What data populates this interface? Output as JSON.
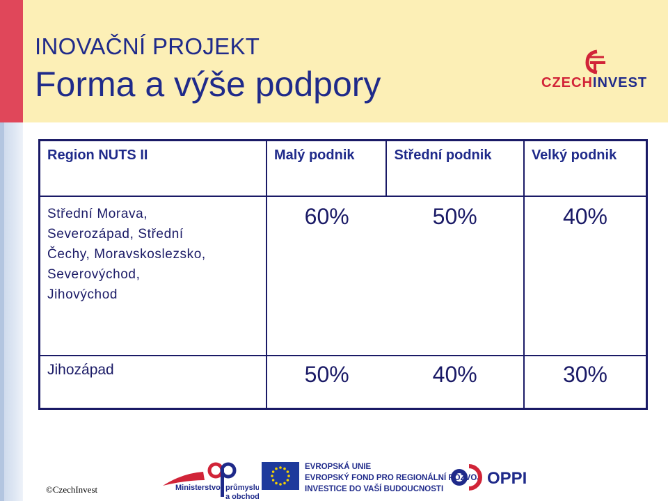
{
  "header": {
    "pre_title": "INOVAČNÍ PROJEKT",
    "title": "Forma a výše podpory"
  },
  "logo": {
    "czech": "CZECH",
    "invest": "INVEST"
  },
  "table": {
    "headers": {
      "region": "Region NUTS II",
      "small": "Malý podnik",
      "medium": "Střední podnik",
      "large": "Velký podnik"
    },
    "rows": [
      {
        "region_lines": [
          "Střední Morava,",
          "Severozápad, Střední",
          "Čechy, Moravskoslezsko,",
          "Severovýchod,",
          "Jihovýchod"
        ],
        "small": "60%",
        "medium": "50%",
        "large": "40%"
      },
      {
        "region": "Jihozápad",
        "small": "50%",
        "medium": "40%",
        "large": "30%"
      }
    ]
  },
  "footer": {
    "copyright": "©CzechInvest",
    "mpo_lines": [
      "Ministerstvo",
      "průmyslu",
      "a obchodu"
    ],
    "eu_lines": [
      "EVROPSKÁ UNIE",
      "EVROPSKÝ FOND PRO REGIONÁLNÍ ROZVOJ",
      "INVESTICE DO VAŠÍ BUDOUCNOSTI"
    ],
    "oppi": "OPPI"
  },
  "colors": {
    "title": "#1f2a8a",
    "header_bg": "#fcefb6",
    "accent_red": "#d12438",
    "table_border": "#1a1a66"
  }
}
